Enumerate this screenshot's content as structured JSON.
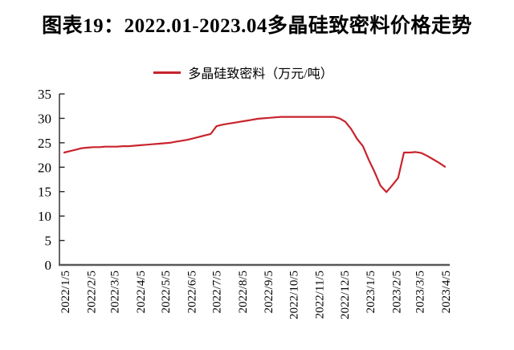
{
  "title": "图表19：2022.01-2023.04多晶硅致密料价格走势",
  "legend": {
    "label": "多晶硅致密料（万元/吨）"
  },
  "chart_data": {
    "type": "line",
    "title": "图表19：2022.01-2023.04多晶硅致密料价格走势",
    "xlabel": "",
    "ylabel": "",
    "ylim": [
      0,
      35
    ],
    "y_ticks": [
      0,
      5,
      10,
      15,
      20,
      25,
      30,
      35
    ],
    "grid": false,
    "legend_position": "top",
    "colors": {
      "line": "#c8242d",
      "y_axis": "#262626",
      "x_baseline": "#595959",
      "tick_label": "#000000"
    },
    "x_ticks": [
      {
        "date": "2022-01-05",
        "label": "2022/1/5"
      },
      {
        "date": "2022-02-05",
        "label": "2022/2/5"
      },
      {
        "date": "2022-03-05",
        "label": "2022/3/5"
      },
      {
        "date": "2022-04-05",
        "label": "2022/4/5"
      },
      {
        "date": "2022-05-05",
        "label": "2022/5/5"
      },
      {
        "date": "2022-06-05",
        "label": "2022/6/5"
      },
      {
        "date": "2022-07-05",
        "label": "2022/7/5"
      },
      {
        "date": "2022-08-05",
        "label": "2022/8/5"
      },
      {
        "date": "2022-09-05",
        "label": "2022/9/5"
      },
      {
        "date": "2022-10-05",
        "label": "2022/10/5"
      },
      {
        "date": "2022-11-05",
        "label": "2022/11/5"
      },
      {
        "date": "2022-12-05",
        "label": "2022/12/5"
      },
      {
        "date": "2023-01-05",
        "label": "2023/1/5"
      },
      {
        "date": "2023-02-05",
        "label": "2023/2/5"
      },
      {
        "date": "2023-03-05",
        "label": "2023/3/5"
      },
      {
        "date": "2023-04-05",
        "label": "2023/4/5"
      }
    ],
    "series": [
      {
        "name": "多晶硅致密料（万元/吨）",
        "unit": "万元/吨",
        "color": "#c8242d",
        "points": [
          [
            "2022-01-05",
            23.0
          ],
          [
            "2022-01-12",
            23.3
          ],
          [
            "2022-01-19",
            23.6
          ],
          [
            "2022-01-26",
            23.9
          ],
          [
            "2022-02-02",
            24.0
          ],
          [
            "2022-02-09",
            24.1
          ],
          [
            "2022-02-16",
            24.1
          ],
          [
            "2022-02-23",
            24.2
          ],
          [
            "2022-03-02",
            24.2
          ],
          [
            "2022-03-09",
            24.2
          ],
          [
            "2022-03-16",
            24.3
          ],
          [
            "2022-03-23",
            24.3
          ],
          [
            "2022-03-30",
            24.4
          ],
          [
            "2022-04-06",
            24.5
          ],
          [
            "2022-04-13",
            24.6
          ],
          [
            "2022-04-20",
            24.7
          ],
          [
            "2022-04-27",
            24.8
          ],
          [
            "2022-05-04",
            24.9
          ],
          [
            "2022-05-11",
            25.0
          ],
          [
            "2022-05-18",
            25.2
          ],
          [
            "2022-05-25",
            25.4
          ],
          [
            "2022-06-01",
            25.6
          ],
          [
            "2022-06-08",
            25.9
          ],
          [
            "2022-06-15",
            26.2
          ],
          [
            "2022-06-22",
            26.5
          ],
          [
            "2022-06-29",
            26.8
          ],
          [
            "2022-07-06",
            28.4
          ],
          [
            "2022-07-13",
            28.7
          ],
          [
            "2022-07-20",
            28.9
          ],
          [
            "2022-07-27",
            29.1
          ],
          [
            "2022-08-03",
            29.3
          ],
          [
            "2022-08-10",
            29.5
          ],
          [
            "2022-08-17",
            29.7
          ],
          [
            "2022-08-24",
            29.9
          ],
          [
            "2022-08-31",
            30.0
          ],
          [
            "2022-09-07",
            30.1
          ],
          [
            "2022-09-14",
            30.2
          ],
          [
            "2022-09-21",
            30.3
          ],
          [
            "2022-09-28",
            30.3
          ],
          [
            "2022-10-05",
            30.3
          ],
          [
            "2022-10-12",
            30.3
          ],
          [
            "2022-10-19",
            30.3
          ],
          [
            "2022-10-26",
            30.3
          ],
          [
            "2022-11-02",
            30.3
          ],
          [
            "2022-11-09",
            30.3
          ],
          [
            "2022-11-16",
            30.3
          ],
          [
            "2022-11-23",
            30.3
          ],
          [
            "2022-11-30",
            30.0
          ],
          [
            "2022-12-07",
            29.3
          ],
          [
            "2022-12-14",
            27.8
          ],
          [
            "2022-12-21",
            25.8
          ],
          [
            "2022-12-28",
            24.3
          ],
          [
            "2023-01-04",
            21.5
          ],
          [
            "2023-01-11",
            19.0
          ],
          [
            "2023-01-18",
            16.2
          ],
          [
            "2023-01-25",
            14.9
          ],
          [
            "2023-02-01",
            16.3
          ],
          [
            "2023-02-08",
            17.8
          ],
          [
            "2023-02-15",
            23.0
          ],
          [
            "2023-02-22",
            23.0
          ],
          [
            "2023-03-01",
            23.1
          ],
          [
            "2023-03-08",
            22.9
          ],
          [
            "2023-03-15",
            22.3
          ],
          [
            "2023-03-22",
            21.6
          ],
          [
            "2023-03-29",
            20.9
          ],
          [
            "2023-04-05",
            20.1
          ]
        ]
      }
    ]
  }
}
